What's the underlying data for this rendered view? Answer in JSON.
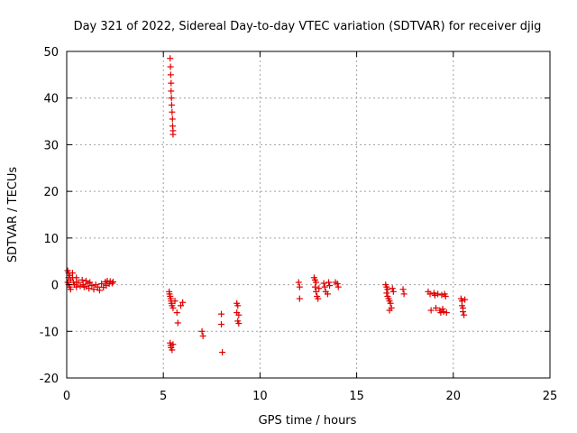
{
  "chart_data": {
    "type": "scatter",
    "title": "Day 321 of 2022, Sidereal Day-to-day VTEC variation (SDTVAR) for receiver djig",
    "xlabel": "GPS time / hours",
    "ylabel": "SDTVAR / TECUs",
    "xlim": [
      0,
      25
    ],
    "ylim": [
      -20,
      50
    ],
    "xticks": [
      0,
      5,
      10,
      15,
      20,
      25
    ],
    "yticks": [
      -20,
      -10,
      0,
      10,
      20,
      30,
      40,
      50
    ],
    "xtick_labels": [
      "0",
      "5",
      "10",
      "15",
      "20",
      "25"
    ],
    "ytick_labels": [
      "-20",
      "-10",
      "0",
      "10",
      "20",
      "30",
      "40",
      "50"
    ],
    "grid": true,
    "marker": "+",
    "marker_color": "#e00000",
    "series": [
      {
        "name": "SDTVAR",
        "points": [
          [
            0.05,
            3.0
          ],
          [
            0.1,
            2.5
          ],
          [
            0.15,
            2.0
          ],
          [
            0.1,
            1.5
          ],
          [
            0.2,
            1.0
          ],
          [
            0.05,
            0.5
          ],
          [
            0.1,
            0.0
          ],
          [
            0.15,
            -0.5
          ],
          [
            0.2,
            -1.0
          ],
          [
            0.3,
            2.5
          ],
          [
            0.3,
            1.5
          ],
          [
            0.35,
            0.5
          ],
          [
            0.4,
            0.0
          ],
          [
            0.5,
            1.5
          ],
          [
            0.5,
            0.5
          ],
          [
            0.5,
            -0.5
          ],
          [
            0.6,
            0.5
          ],
          [
            0.7,
            -0.3
          ],
          [
            0.8,
            1.0
          ],
          [
            0.85,
            0.0
          ],
          [
            0.9,
            -0.5
          ],
          [
            1.0,
            0.8
          ],
          [
            1.0,
            -0.4
          ],
          [
            1.1,
            0.3
          ],
          [
            1.15,
            -0.8
          ],
          [
            1.2,
            0.5
          ],
          [
            1.3,
            -0.2
          ],
          [
            1.4,
            -1.0
          ],
          [
            1.5,
            0.0
          ],
          [
            1.6,
            -0.5
          ],
          [
            1.7,
            -1.2
          ],
          [
            1.8,
            0.2
          ],
          [
            1.9,
            -0.6
          ],
          [
            2.0,
            0.6
          ],
          [
            2.05,
            -0.2
          ],
          [
            2.1,
            0.8
          ],
          [
            2.2,
            0.2
          ],
          [
            2.25,
            0.7
          ],
          [
            2.35,
            0.3
          ],
          [
            2.4,
            0.6
          ],
          [
            5.35,
            48.5
          ],
          [
            5.37,
            46.7
          ],
          [
            5.38,
            45.0
          ],
          [
            5.4,
            43.2
          ],
          [
            5.4,
            41.5
          ],
          [
            5.42,
            40.0
          ],
          [
            5.43,
            38.5
          ],
          [
            5.45,
            37.0
          ],
          [
            5.47,
            35.5
          ],
          [
            5.48,
            34.0
          ],
          [
            5.5,
            33.0
          ],
          [
            5.5,
            32.2
          ],
          [
            5.3,
            -1.5
          ],
          [
            5.32,
            -2.0
          ],
          [
            5.35,
            -2.5
          ],
          [
            5.38,
            -3.0
          ],
          [
            5.4,
            -3.5
          ],
          [
            5.42,
            -4.0
          ],
          [
            5.45,
            -4.5
          ],
          [
            5.5,
            -5.0
          ],
          [
            5.6,
            -3.5
          ],
          [
            5.7,
            -6.0
          ],
          [
            5.75,
            -8.2
          ],
          [
            5.9,
            -4.5
          ],
          [
            6.0,
            -3.8
          ],
          [
            5.35,
            -12.5
          ],
          [
            5.38,
            -13.0
          ],
          [
            5.4,
            -13.5
          ],
          [
            5.45,
            -14.0
          ],
          [
            5.5,
            -12.8
          ],
          [
            7.0,
            -10.0
          ],
          [
            7.05,
            -11.0
          ],
          [
            8.0,
            -6.3
          ],
          [
            8.0,
            -8.5
          ],
          [
            8.05,
            -14.5
          ],
          [
            8.8,
            -4.0
          ],
          [
            8.85,
            -4.5
          ],
          [
            8.8,
            -6.0
          ],
          [
            8.9,
            -6.5
          ],
          [
            8.85,
            -7.8
          ],
          [
            8.9,
            -8.3
          ],
          [
            12.0,
            0.5
          ],
          [
            12.05,
            -0.5
          ],
          [
            12.05,
            -3.0
          ],
          [
            12.8,
            1.5
          ],
          [
            12.85,
            1.0
          ],
          [
            12.9,
            0.5
          ],
          [
            12.85,
            -0.5
          ],
          [
            12.9,
            -1.5
          ],
          [
            12.95,
            -2.5
          ],
          [
            13.0,
            -3.0
          ],
          [
            13.05,
            -0.8
          ],
          [
            13.3,
            0.3
          ],
          [
            13.35,
            -0.5
          ],
          [
            13.4,
            -1.5
          ],
          [
            13.5,
            -2.0
          ],
          [
            13.55,
            0.5
          ],
          [
            13.6,
            -0.2
          ],
          [
            13.9,
            0.5
          ],
          [
            14.0,
            0.2
          ],
          [
            14.05,
            -0.5
          ],
          [
            16.5,
            0.0
          ],
          [
            16.55,
            -0.5
          ],
          [
            16.6,
            -1.0
          ],
          [
            16.55,
            -1.8
          ],
          [
            16.6,
            -2.5
          ],
          [
            16.65,
            -3.0
          ],
          [
            16.7,
            -3.5
          ],
          [
            16.75,
            -4.0
          ],
          [
            16.7,
            -5.5
          ],
          [
            16.8,
            -5.0
          ],
          [
            16.85,
            -0.8
          ],
          [
            16.9,
            -1.5
          ],
          [
            17.4,
            -1.0
          ],
          [
            17.45,
            -2.0
          ],
          [
            18.7,
            -1.5
          ],
          [
            18.8,
            -2.0
          ],
          [
            18.85,
            -5.5
          ],
          [
            19.0,
            -1.8
          ],
          [
            19.05,
            -2.3
          ],
          [
            19.1,
            -5.0
          ],
          [
            19.2,
            -2.0
          ],
          [
            19.3,
            -5.5
          ],
          [
            19.35,
            -6.0
          ],
          [
            19.4,
            -2.2
          ],
          [
            19.45,
            -5.2
          ],
          [
            19.5,
            -5.8
          ],
          [
            19.55,
            -2.0
          ],
          [
            19.6,
            -2.5
          ],
          [
            19.65,
            -6.0
          ],
          [
            20.4,
            -3.0
          ],
          [
            20.45,
            -3.5
          ],
          [
            20.45,
            -4.5
          ],
          [
            20.5,
            -5.0
          ],
          [
            20.5,
            -5.8
          ],
          [
            20.55,
            -6.5
          ],
          [
            20.6,
            -3.2
          ]
        ]
      }
    ]
  }
}
